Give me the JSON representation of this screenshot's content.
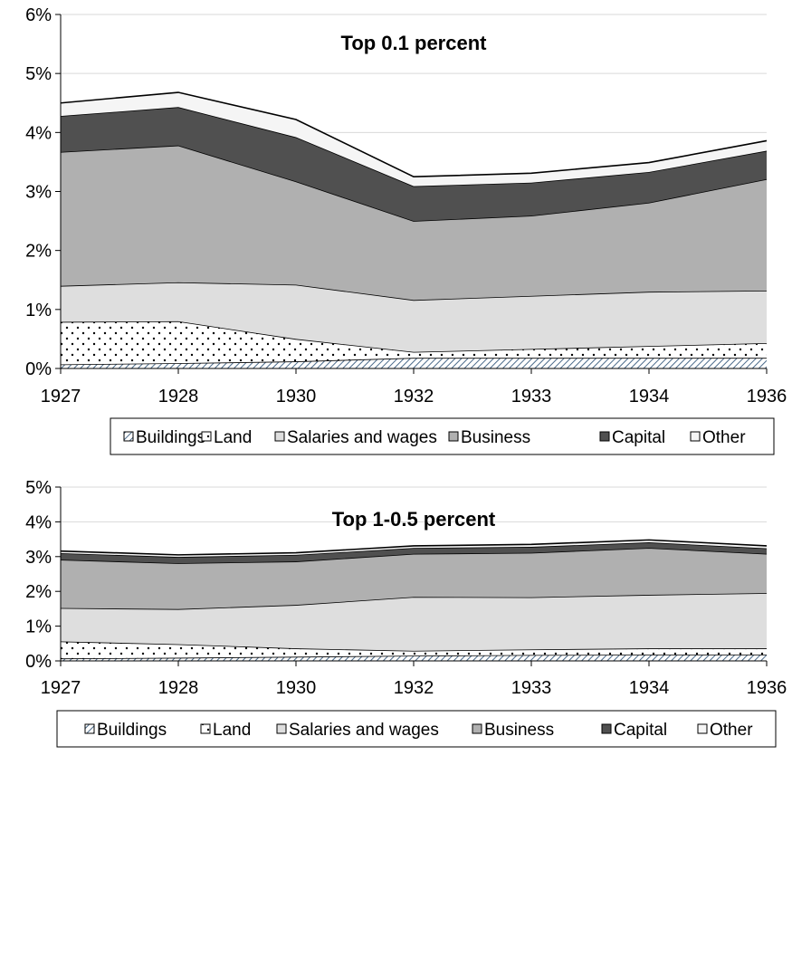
{
  "legend": {
    "buildings": "Buildings",
    "land": "Land",
    "salaries": "Salaries and wages",
    "business": "Business",
    "capital": "Capital",
    "other": "Other"
  },
  "colors": {
    "buildings": "#b0b8c8",
    "land": "#ffffff",
    "salaries": "#dedede",
    "business": "#b0b0b0",
    "capital": "#505050",
    "other": "#f5f5f5",
    "line": "#000000"
  },
  "chart_data": [
    {
      "type": "area",
      "stacked": true,
      "title": "Top 0.1 percent",
      "categories": [
        "1927",
        "1928",
        "1930",
        "1932",
        "1933",
        "1934",
        "1936"
      ],
      "ylim": [
        0,
        6
      ],
      "yticks": [
        "0%",
        "1%",
        "2%",
        "3%",
        "4%",
        "5%",
        "6%"
      ],
      "grid": true,
      "legend_position": "bottom",
      "series": [
        {
          "key": "buildings",
          "name": "Buildings",
          "values": [
            0.07,
            0.09,
            0.12,
            0.18,
            0.18,
            0.18,
            0.18
          ]
        },
        {
          "key": "land",
          "name": "Land",
          "values": [
            0.72,
            0.71,
            0.38,
            0.1,
            0.15,
            0.2,
            0.25
          ]
        },
        {
          "key": "salaries",
          "name": "Salaries and wages",
          "values": [
            0.61,
            0.66,
            0.92,
            0.88,
            0.9,
            0.92,
            0.89
          ]
        },
        {
          "key": "business",
          "name": "Business",
          "values": [
            2.27,
            2.32,
            1.75,
            1.34,
            1.36,
            1.51,
            1.89
          ]
        },
        {
          "key": "capital",
          "name": "Capital",
          "values": [
            0.61,
            0.65,
            0.75,
            0.59,
            0.56,
            0.52,
            0.48
          ]
        },
        {
          "key": "other",
          "name": "Other",
          "values": [
            0.22,
            0.25,
            0.3,
            0.16,
            0.16,
            0.16,
            0.17
          ]
        }
      ]
    },
    {
      "type": "area",
      "stacked": true,
      "title": "Top 1-0.5 percent",
      "categories": [
        "1927",
        "1928",
        "1930",
        "1932",
        "1933",
        "1934",
        "1936"
      ],
      "ylim": [
        0,
        5
      ],
      "yticks": [
        "0%",
        "1%",
        "2%",
        "3%",
        "4%",
        "5%"
      ],
      "grid": true,
      "legend_position": "bottom",
      "series": [
        {
          "key": "buildings",
          "name": "Buildings",
          "values": [
            0.07,
            0.09,
            0.12,
            0.15,
            0.17,
            0.18,
            0.18
          ]
        },
        {
          "key": "land",
          "name": "Land",
          "values": [
            0.49,
            0.39,
            0.24,
            0.14,
            0.16,
            0.18,
            0.18
          ]
        },
        {
          "key": "salaries",
          "name": "Salaries and wages",
          "values": [
            0.96,
            1.01,
            1.25,
            1.55,
            1.5,
            1.54,
            1.59
          ]
        },
        {
          "key": "business",
          "name": "Business",
          "values": [
            1.39,
            1.32,
            1.25,
            1.24,
            1.28,
            1.35,
            1.13
          ]
        },
        {
          "key": "capital",
          "name": "Capital",
          "values": [
            0.19,
            0.18,
            0.19,
            0.17,
            0.17,
            0.16,
            0.16
          ]
        },
        {
          "key": "other",
          "name": "Other",
          "values": [
            0.06,
            0.06,
            0.06,
            0.06,
            0.07,
            0.07,
            0.07
          ]
        }
      ]
    }
  ]
}
